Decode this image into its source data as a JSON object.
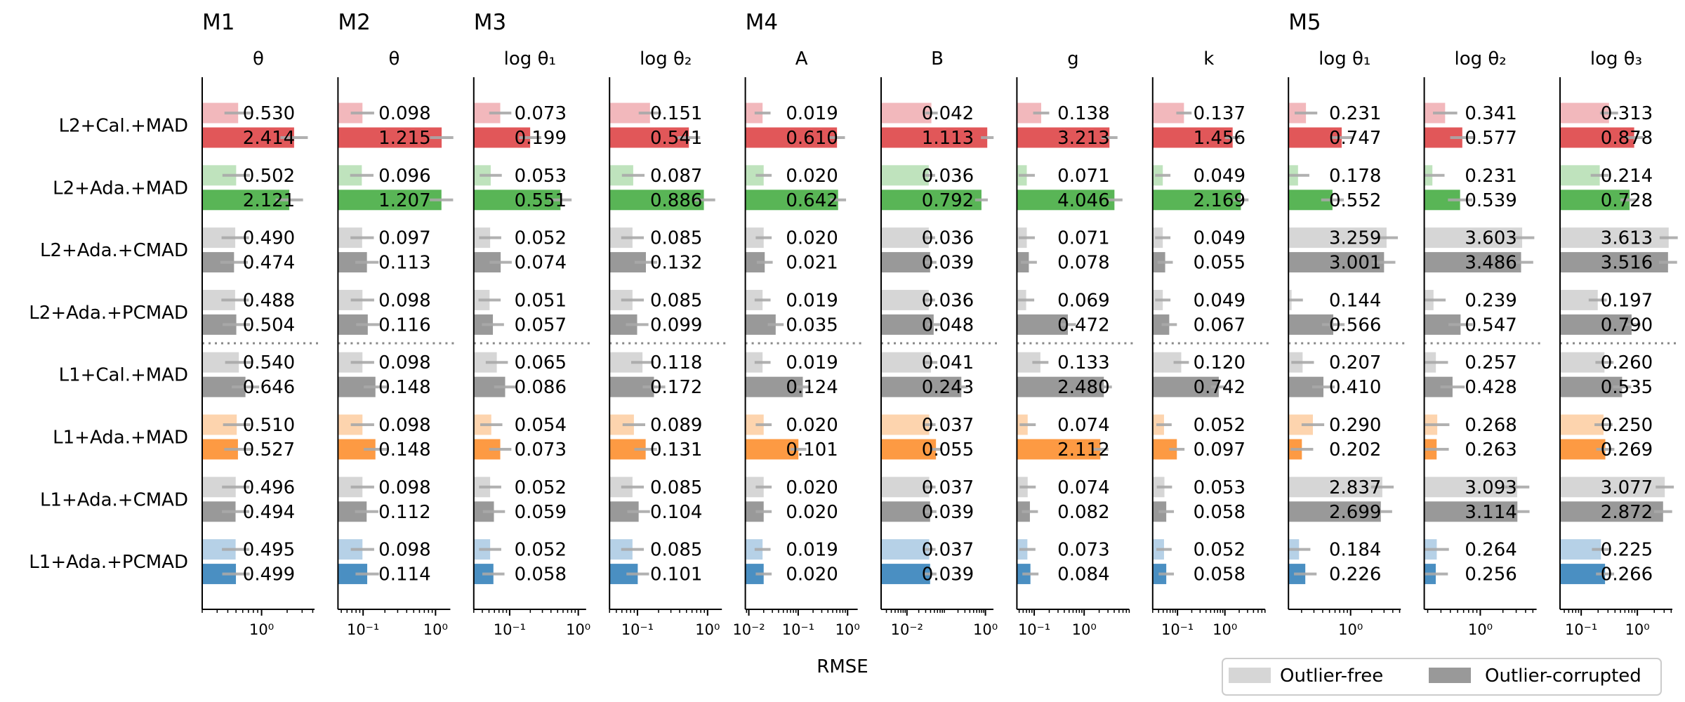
{
  "chart_data": {
    "type": "bar",
    "orientation": "horizontal",
    "xlabel": "RMSE",
    "x_scale": "log",
    "legend": {
      "placement": "bottom-right",
      "entries": [
        {
          "label": "Outlier-free",
          "color": "#d6d6d6"
        },
        {
          "label": "Outlier-corrupted",
          "color": "#999999"
        }
      ]
    },
    "rows": [
      "L2+Cal.+MAD",
      "L2+Ada.+MAD",
      "L2+Ada.+CMAD",
      "L2+Ada.+PCMAD",
      "L1+Cal.+MAD",
      "L1+Ada.+MAD",
      "L1+Ada.+CMAD",
      "L1+Ada.+PCMAD"
    ],
    "row_colors": {
      "light": [
        "#f2b8bc",
        "#bfe3bd",
        "#d6d6d6",
        "#d6d6d6",
        "#d6d6d6",
        "#fdd4ae",
        "#d6d6d6",
        "#b6d1e7"
      ],
      "dark": [
        "#e15759",
        "#59b556",
        "#999999",
        "#999999",
        "#999999",
        "#fd9a43",
        "#999999",
        "#4a8fc2"
      ]
    },
    "separator_after_row": 3,
    "panels": [
      {
        "group": "M1",
        "param": "θ",
        "xlim": [
          0.2,
          4.2
        ],
        "ticks": [
          {
            "v": 1,
            "l": "10⁰"
          }
        ],
        "outlier_free": [
          0.53,
          0.502,
          0.49,
          0.488,
          0.54,
          0.51,
          0.496,
          0.495
        ],
        "outlier_corrupted": [
          2.414,
          2.121,
          0.474,
          0.504,
          0.646,
          0.527,
          0.494,
          0.499
        ],
        "outlier_free_labels": [
          "0.530",
          "0.502",
          "0.490",
          "0.488",
          "0.540",
          "0.510",
          "0.496",
          "0.495"
        ],
        "outlier_corrupted_labels": [
          "2.414",
          "2.121",
          "0.474",
          "0.504",
          "0.646",
          "0.527",
          "0.494",
          "0.499"
        ]
      },
      {
        "group": "M2",
        "param": "θ",
        "xlim": [
          0.045,
          1.6
        ],
        "ticks": [
          {
            "v": 0.1,
            "l": "10⁻¹"
          },
          {
            "v": 1,
            "l": "10⁰"
          }
        ],
        "outlier_free": [
          0.098,
          0.096,
          0.097,
          0.098,
          0.098,
          0.098,
          0.098,
          0.098
        ],
        "outlier_corrupted": [
          1.215,
          1.207,
          0.113,
          0.116,
          0.148,
          0.148,
          0.112,
          0.114
        ],
        "outlier_free_labels": [
          "0.098",
          "0.096",
          "0.097",
          "0.098",
          "0.098",
          "0.098",
          "0.098",
          "0.098"
        ],
        "outlier_corrupted_labels": [
          "1.215",
          "1.207",
          "0.113",
          "0.116",
          "0.148",
          "0.148",
          "0.112",
          "0.114"
        ]
      },
      {
        "group": "M3",
        "param": "log θ₁",
        "xlim": [
          0.03,
          1.3
        ],
        "ticks": [
          {
            "v": 0.1,
            "l": "10⁻¹"
          },
          {
            "v": 1,
            "l": "10⁰"
          }
        ],
        "outlier_free": [
          0.073,
          0.053,
          0.052,
          0.051,
          0.065,
          0.054,
          0.052,
          0.052
        ],
        "outlier_corrupted": [
          0.199,
          0.551,
          0.074,
          0.057,
          0.086,
          0.073,
          0.059,
          0.058
        ],
        "outlier_free_labels": [
          "0.073",
          "0.053",
          "0.052",
          "0.051",
          "0.065",
          "0.054",
          "0.052",
          "0.052"
        ],
        "outlier_corrupted_labels": [
          "0.199",
          "0.551",
          "0.074",
          "0.057",
          "0.086",
          "0.073",
          "0.059",
          "0.058"
        ]
      },
      {
        "group": "",
        "param": "log θ₂",
        "xlim": [
          0.04,
          1.6
        ],
        "ticks": [
          {
            "v": 0.1,
            "l": "10⁻¹"
          },
          {
            "v": 1,
            "l": "10⁰"
          }
        ],
        "outlier_free": [
          0.151,
          0.087,
          0.085,
          0.085,
          0.118,
          0.089,
          0.085,
          0.085
        ],
        "outlier_corrupted": [
          0.541,
          0.886,
          0.132,
          0.099,
          0.172,
          0.131,
          0.104,
          0.101
        ],
        "outlier_free_labels": [
          "0.151",
          "0.087",
          "0.085",
          "0.085",
          "0.118",
          "0.089",
          "0.085",
          "0.085"
        ],
        "outlier_corrupted_labels": [
          "0.541",
          "0.886",
          "0.132",
          "0.099",
          "0.172",
          "0.131",
          "0.104",
          "0.101"
        ]
      },
      {
        "group": "M4",
        "param": "A",
        "xlim": [
          0.0085,
          1.6
        ],
        "ticks": [
          {
            "v": 0.01,
            "l": "10⁻²"
          },
          {
            "v": 0.1,
            "l": "10⁻¹"
          },
          {
            "v": 1,
            "l": "10⁰"
          }
        ],
        "outlier_free": [
          0.019,
          0.02,
          0.02,
          0.019,
          0.019,
          0.02,
          0.02,
          0.019
        ],
        "outlier_corrupted": [
          0.61,
          0.642,
          0.021,
          0.035,
          0.124,
          0.101,
          0.02,
          0.02
        ],
        "outlier_free_labels": [
          "0.019",
          "0.020",
          "0.020",
          "0.019",
          "0.019",
          "0.020",
          "0.020",
          "0.019"
        ],
        "outlier_corrupted_labels": [
          "0.610",
          "0.642",
          "0.021",
          "0.035",
          "0.124",
          "0.101",
          "0.020",
          "0.020"
        ]
      },
      {
        "group": "",
        "param": "B",
        "xlim": [
          0.0022,
          1.6
        ],
        "ticks": [
          {
            "v": 0.01,
            "l": "10⁻²"
          },
          {
            "v": 1,
            "l": "10⁰"
          }
        ],
        "outlier_free": [
          0.042,
          0.036,
          0.036,
          0.036,
          0.041,
          0.037,
          0.037,
          0.037
        ],
        "outlier_corrupted": [
          1.113,
          0.792,
          0.039,
          0.048,
          0.243,
          0.055,
          0.039,
          0.039
        ],
        "outlier_free_labels": [
          "0.042",
          "0.036",
          "0.036",
          "0.036",
          "0.041",
          "0.037",
          "0.037",
          "0.037"
        ],
        "outlier_corrupted_labels": [
          "1.113",
          "0.792",
          "0.039",
          "0.048",
          "0.243",
          "0.055",
          "0.039",
          "0.039"
        ]
      },
      {
        "group": "",
        "param": "g",
        "xlim": [
          0.045,
          8
        ],
        "ticks": [
          {
            "v": 0.1,
            "l": "10⁻¹"
          },
          {
            "v": 1,
            "l": "10⁰"
          }
        ],
        "outlier_free": [
          0.138,
          0.071,
          0.071,
          0.069,
          0.133,
          0.074,
          0.074,
          0.073
        ],
        "outlier_corrupted": [
          3.213,
          4.046,
          0.078,
          0.472,
          2.48,
          2.112,
          0.082,
          0.084
        ],
        "outlier_free_labels": [
          "0.138",
          "0.071",
          "0.071",
          "0.069",
          "0.133",
          "0.074",
          "0.074",
          "0.073"
        ],
        "outlier_corrupted_labels": [
          "3.213",
          "4.046",
          "0.078",
          "0.472",
          "2.480",
          "2.112",
          "0.082",
          "0.084"
        ]
      },
      {
        "group": "",
        "param": "k",
        "xlim": [
          0.03,
          7
        ],
        "ticks": [
          {
            "v": 0.1,
            "l": "10⁻¹"
          },
          {
            "v": 1,
            "l": "10⁰"
          }
        ],
        "outlier_free": [
          0.137,
          0.049,
          0.049,
          0.049,
          0.12,
          0.052,
          0.053,
          0.052
        ],
        "outlier_corrupted": [
          1.456,
          2.169,
          0.055,
          0.067,
          0.742,
          0.097,
          0.058,
          0.058
        ],
        "outlier_free_labels": [
          "0.137",
          "0.049",
          "0.049",
          "0.049",
          "0.120",
          "0.052",
          "0.053",
          "0.052"
        ],
        "outlier_corrupted_labels": [
          "1.456",
          "2.169",
          "0.055",
          "0.067",
          "0.742",
          "0.097",
          "0.058",
          "0.058"
        ]
      },
      {
        "group": "M5",
        "param": "log θ₁",
        "xlim": [
          0.13,
          5.2
        ],
        "ticks": [
          {
            "v": 1,
            "l": "10⁰"
          }
        ],
        "outlier_free": [
          0.231,
          0.178,
          3.259,
          0.144,
          0.207,
          0.29,
          2.837,
          0.184
        ],
        "outlier_corrupted": [
          0.747,
          0.552,
          3.001,
          0.566,
          0.41,
          0.202,
          2.699,
          0.226
        ],
        "outlier_free_labels": [
          "0.231",
          "0.178",
          "3.259",
          "0.144",
          "0.207",
          "0.290",
          "2.837",
          "0.184"
        ],
        "outlier_corrupted_labels": [
          "0.747",
          "0.552",
          "3.001",
          "0.566",
          "0.410",
          "0.202",
          "2.699",
          "0.226"
        ]
      },
      {
        "group": "",
        "param": "log θ₂",
        "xlim": [
          0.18,
          5.6
        ],
        "ticks": [
          {
            "v": 1,
            "l": "10⁰"
          }
        ],
        "outlier_free": [
          0.341,
          0.231,
          3.603,
          0.239,
          0.257,
          0.268,
          3.093,
          0.264
        ],
        "outlier_corrupted": [
          0.577,
          0.539,
          3.486,
          0.547,
          0.428,
          0.263,
          3.114,
          0.256
        ],
        "outlier_free_labels": [
          "0.341",
          "0.231",
          "3.603",
          "0.239",
          "0.257",
          "0.268",
          "3.093",
          "0.264"
        ],
        "outlier_corrupted_labels": [
          "0.577",
          "0.539",
          "3.486",
          "0.547",
          "0.428",
          "0.263",
          "3.114",
          "0.256"
        ]
      },
      {
        "group": "",
        "param": "log θ₃",
        "xlim": [
          0.042,
          4.2
        ],
        "ticks": [
          {
            "v": 0.1,
            "l": "10⁻¹"
          },
          {
            "v": 1,
            "l": "10⁰"
          }
        ],
        "outlier_free": [
          0.313,
          0.214,
          3.613,
          0.197,
          0.26,
          0.25,
          3.077,
          0.225
        ],
        "outlier_corrupted": [
          0.878,
          0.728,
          3.516,
          0.79,
          0.535,
          0.269,
          2.872,
          0.266
        ],
        "outlier_free_labels": [
          "0.313",
          "0.214",
          "3.613",
          "0.197",
          "0.260",
          "0.250",
          "3.077",
          "0.225"
        ],
        "outlier_corrupted_labels": [
          "0.878",
          "0.728",
          "3.516",
          "0.790",
          "0.535",
          "0.269",
          "2.872",
          "0.266"
        ]
      }
    ]
  }
}
